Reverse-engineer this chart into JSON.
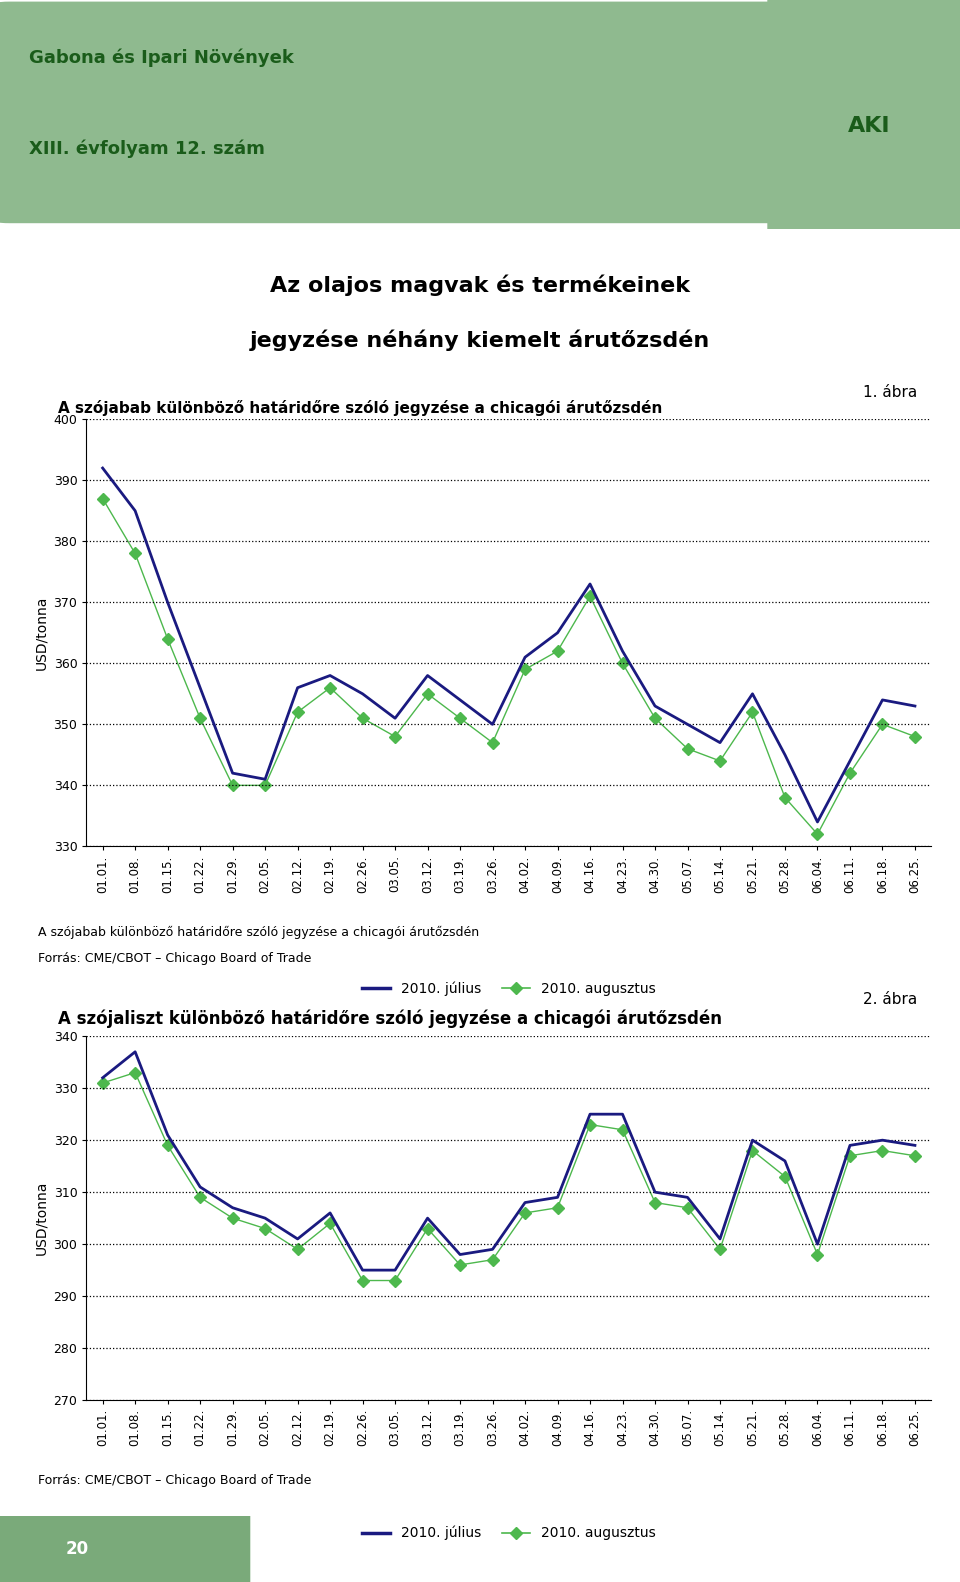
{
  "main_title_line1": "Az olajos magvak és termékeinek",
  "main_title_line2": "jegyzése néhány kiemelt árutőzsdén",
  "header_line1": "Gabona és Ipari Növények",
  "header_line2": "XIII. évfolyam 12. szám",
  "chart1_title": "A szójabab különböző határidőre szóló jegyzése a chicagói árutőzsdén",
  "chart1_label": "1. ábra",
  "chart1_ylabel": "USD/tonna",
  "chart1_ylim": [
    330,
    400
  ],
  "chart1_yticks": [
    330,
    340,
    350,
    360,
    370,
    380,
    390,
    400
  ],
  "chart1_source_line1": "A szójabab különböző határidőre szóló jegyzése a chicagói árutőzsdén",
  "chart1_source_line2": "Forrás: CME/CBOT – Chicago Board of Trade",
  "chart2_title": "A szójaliszt különböző határidőre szóló jegyzése a chicagói árutőzsdén",
  "chart2_label": "2. ábra",
  "chart2_ylabel": "USD/tonna",
  "chart2_ylim": [
    270,
    340
  ],
  "chart2_yticks": [
    270,
    280,
    290,
    300,
    310,
    320,
    330,
    340
  ],
  "chart2_source": "Forrás: CME/CBOT – Chicago Board of Trade",
  "legend_july": "2010. július",
  "legend_august": "2010. augusztus",
  "line_color_july": "#1a1a80",
  "line_color_august": "#4db84d",
  "header_bg_color": "#8fba8f",
  "header_text_color": "#1a5c1a",
  "x_labels": [
    "01.01.",
    "01.08.",
    "01.15.",
    "01.22.",
    "01.29.",
    "02.05.",
    "02.12.",
    "02.19.",
    "02.26.",
    "03.05.",
    "03.12.",
    "03.19.",
    "03.26.",
    "04.02.",
    "04.09.",
    "04.16.",
    "04.23.",
    "04.30.",
    "05.07.",
    "05.14.",
    "05.21.",
    "05.28.",
    "06.04.",
    "06.11.",
    "06.18.",
    "06.25."
  ],
  "chart1_july": [
    392,
    385,
    370,
    356,
    342,
    341,
    356,
    358,
    355,
    351,
    358,
    354,
    350,
    361,
    365,
    373,
    362,
    353,
    350,
    347,
    355,
    345,
    334,
    344,
    354,
    353
  ],
  "chart1_aug": [
    387,
    378,
    364,
    351,
    340,
    340,
    352,
    356,
    351,
    348,
    355,
    351,
    347,
    359,
    362,
    371,
    360,
    351,
    346,
    344,
    352,
    338,
    332,
    342,
    350,
    348
  ],
  "chart2_july": [
    332,
    337,
    321,
    311,
    307,
    305,
    301,
    306,
    295,
    295,
    305,
    298,
    299,
    308,
    309,
    325,
    325,
    310,
    309,
    301,
    320,
    316,
    300,
    319,
    320,
    319
  ],
  "chart2_aug": [
    331,
    333,
    319,
    309,
    305,
    303,
    299,
    304,
    293,
    293,
    303,
    296,
    297,
    306,
    307,
    323,
    322,
    308,
    307,
    299,
    318,
    313,
    298,
    317,
    318,
    317
  ],
  "page_number": "20",
  "page_bg_color": "#7aaa7a"
}
